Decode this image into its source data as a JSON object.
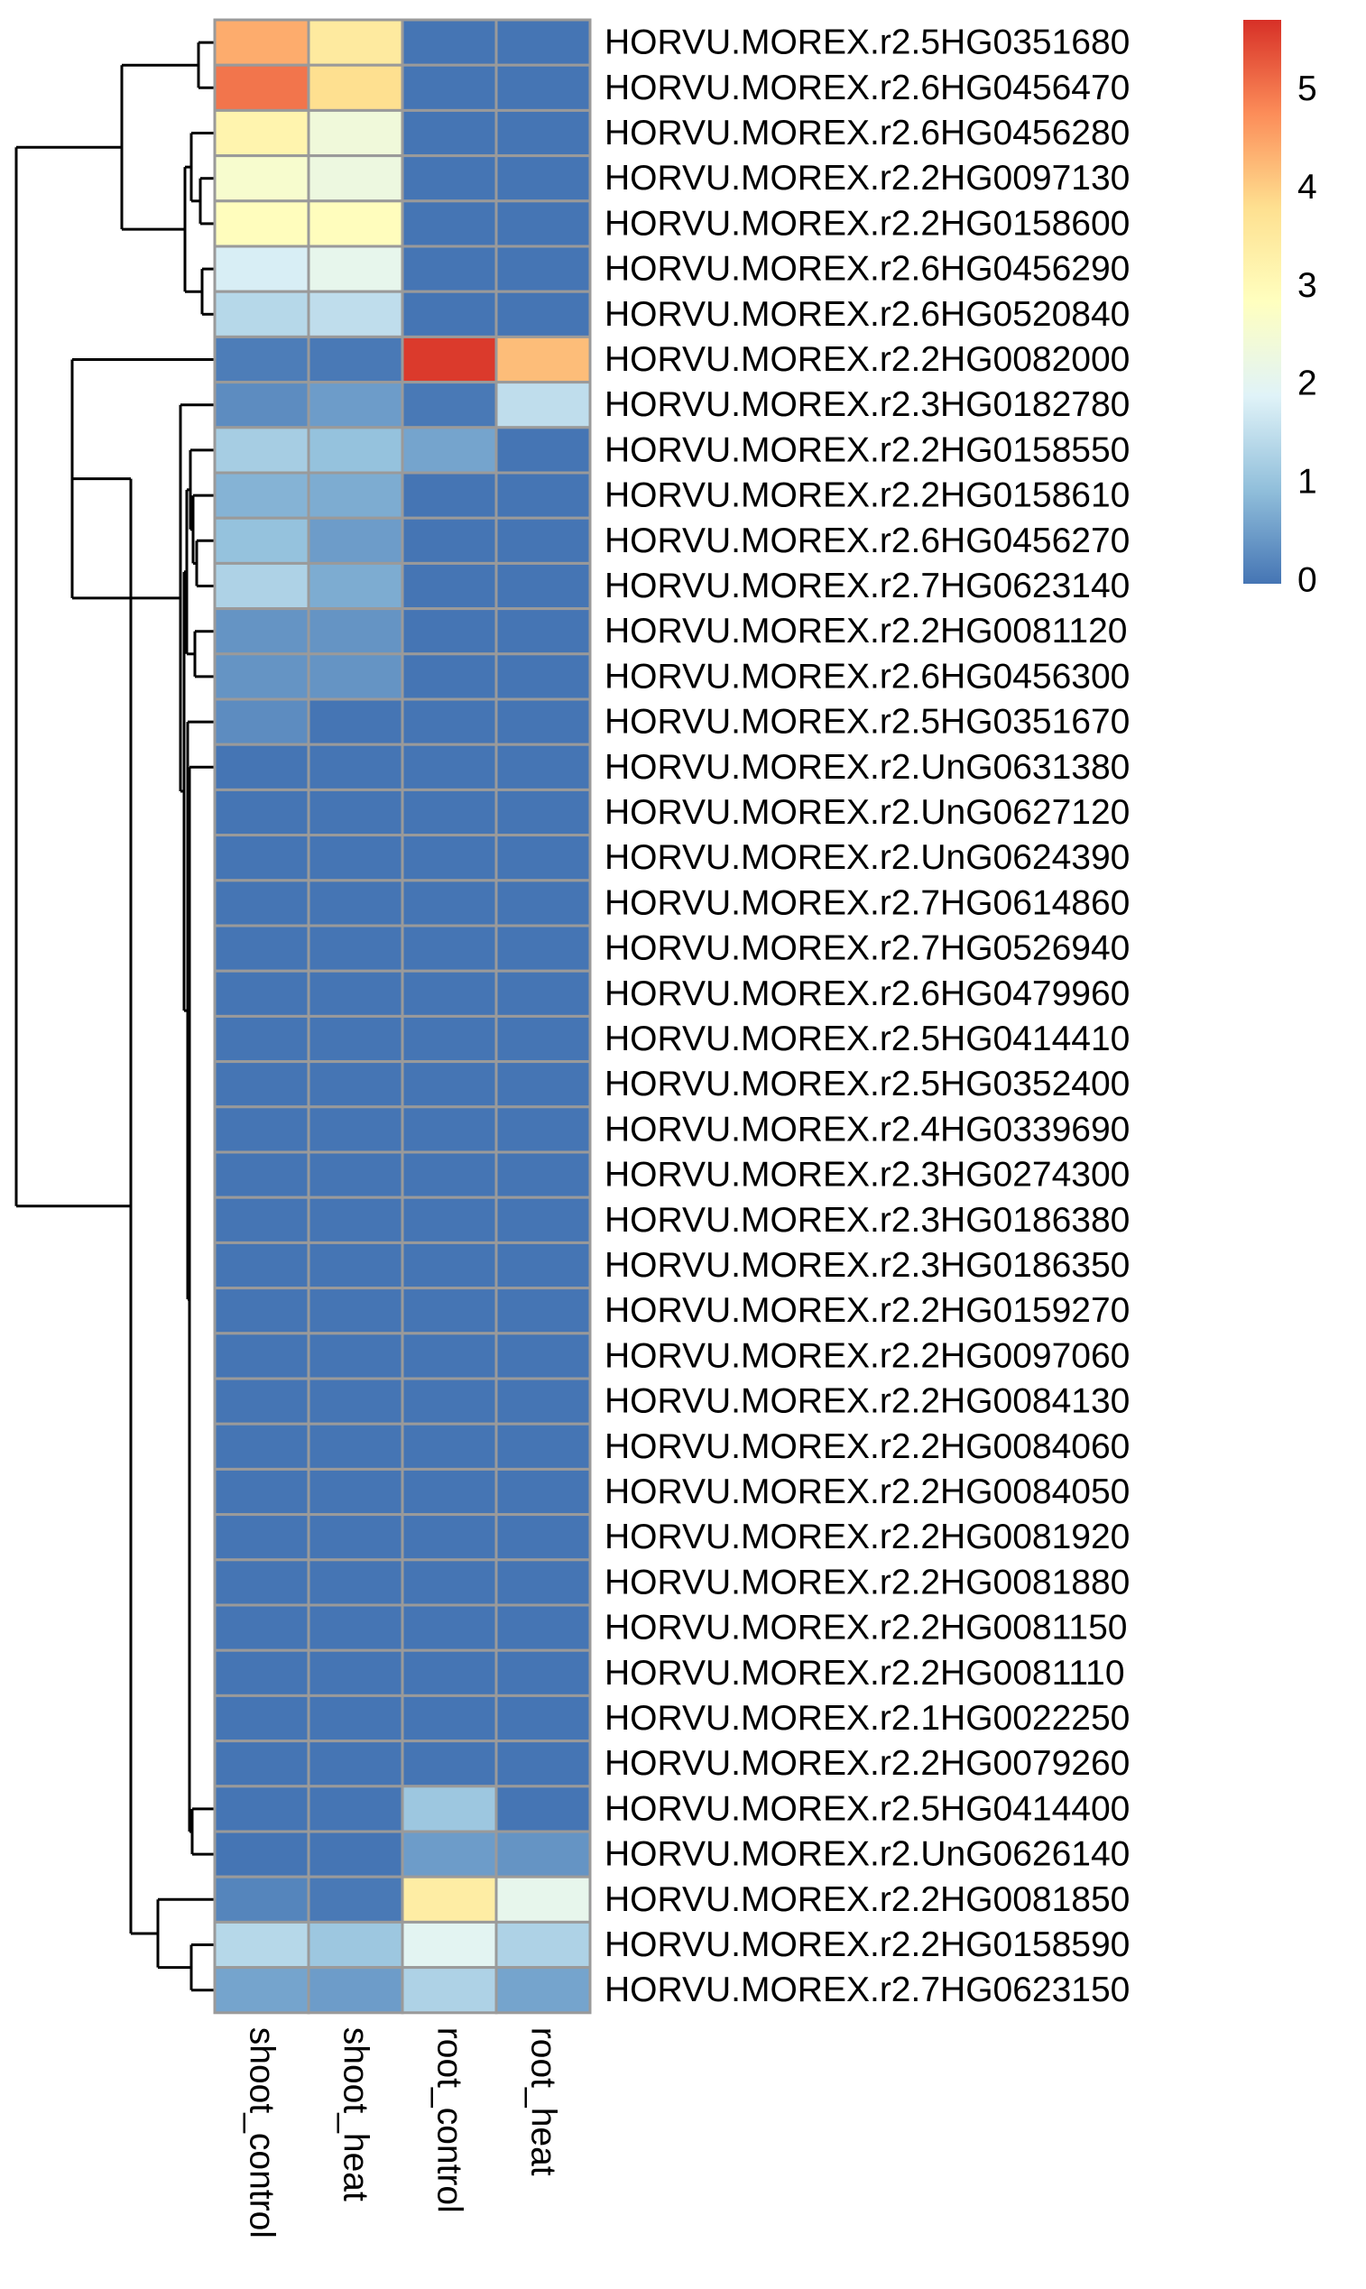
{
  "chart_data": {
    "type": "heatmap",
    "columns": [
      "shoot_control",
      "shoot_heat",
      "root_control",
      "root_heat"
    ],
    "rows": [
      {
        "gene": "HORVU.MOREX.r2.5HG0351680",
        "values": [
          4.4,
          3.5,
          0,
          0
        ]
      },
      {
        "gene": "HORVU.MOREX.r2.6HG0456470",
        "values": [
          5.0,
          3.8,
          0,
          0
        ]
      },
      {
        "gene": "HORVU.MOREX.r2.6HG0456280",
        "values": [
          3.2,
          2.4,
          0,
          0
        ]
      },
      {
        "gene": "HORVU.MOREX.r2.2HG0097130",
        "values": [
          2.6,
          2.3,
          0,
          0
        ]
      },
      {
        "gene": "HORVU.MOREX.r2.2HG0158600",
        "values": [
          2.9,
          2.9,
          0,
          0
        ]
      },
      {
        "gene": "HORVU.MOREX.r2.6HG0456290",
        "values": [
          1.8,
          2.1,
          0,
          0
        ]
      },
      {
        "gene": "HORVU.MOREX.r2.6HG0520840",
        "values": [
          1.4,
          1.5,
          0,
          0
        ]
      },
      {
        "gene": "HORVU.MOREX.r2.2HG0082000",
        "values": [
          0.1,
          0.05,
          5.6,
          4.2
        ]
      },
      {
        "gene": "HORVU.MOREX.r2.3HG0182780",
        "values": [
          0.3,
          0.5,
          0.05,
          1.5
        ]
      },
      {
        "gene": "HORVU.MOREX.r2.2HG0158550",
        "values": [
          1.2,
          1.0,
          0.6,
          0
        ]
      },
      {
        "gene": "HORVU.MOREX.r2.2HG0158610",
        "values": [
          0.8,
          0.7,
          0,
          0
        ]
      },
      {
        "gene": "HORVU.MOREX.r2.6HG0456270",
        "values": [
          1.0,
          0.5,
          0,
          0
        ]
      },
      {
        "gene": "HORVU.MOREX.r2.7HG0623140",
        "values": [
          1.3,
          0.7,
          0,
          0
        ]
      },
      {
        "gene": "HORVU.MOREX.r2.2HG0081120",
        "values": [
          0.4,
          0.4,
          0,
          0
        ]
      },
      {
        "gene": "HORVU.MOREX.r2.6HG0456300",
        "values": [
          0.4,
          0.4,
          0,
          0
        ]
      },
      {
        "gene": "HORVU.MOREX.r2.5HG0351670",
        "values": [
          0.3,
          0,
          0,
          0
        ]
      },
      {
        "gene": "HORVU.MOREX.r2.UnG0631380",
        "values": [
          0,
          0,
          0,
          0
        ]
      },
      {
        "gene": "HORVU.MOREX.r2.UnG0627120",
        "values": [
          0,
          0,
          0,
          0
        ]
      },
      {
        "gene": "HORVU.MOREX.r2.UnG0624390",
        "values": [
          0,
          0,
          0,
          0
        ]
      },
      {
        "gene": "HORVU.MOREX.r2.7HG0614860",
        "values": [
          0,
          0,
          0,
          0
        ]
      },
      {
        "gene": "HORVU.MOREX.r2.7HG0526940",
        "values": [
          0,
          0,
          0,
          0
        ]
      },
      {
        "gene": "HORVU.MOREX.r2.6HG0479960",
        "values": [
          0,
          0,
          0,
          0
        ]
      },
      {
        "gene": "HORVU.MOREX.r2.5HG0414410",
        "values": [
          0,
          0,
          0,
          0
        ]
      },
      {
        "gene": "HORVU.MOREX.r2.5HG0352400",
        "values": [
          0,
          0,
          0,
          0
        ]
      },
      {
        "gene": "HORVU.MOREX.r2.4HG0339690",
        "values": [
          0,
          0,
          0,
          0
        ]
      },
      {
        "gene": "HORVU.MOREX.r2.3HG0274300",
        "values": [
          0,
          0,
          0,
          0
        ]
      },
      {
        "gene": "HORVU.MOREX.r2.3HG0186380",
        "values": [
          0,
          0,
          0,
          0
        ]
      },
      {
        "gene": "HORVU.MOREX.r2.3HG0186350",
        "values": [
          0,
          0,
          0,
          0
        ]
      },
      {
        "gene": "HORVU.MOREX.r2.2HG0159270",
        "values": [
          0,
          0,
          0,
          0
        ]
      },
      {
        "gene": "HORVU.MOREX.r2.2HG0097060",
        "values": [
          0,
          0,
          0,
          0
        ]
      },
      {
        "gene": "HORVU.MOREX.r2.2HG0084130",
        "values": [
          0,
          0,
          0,
          0
        ]
      },
      {
        "gene": "HORVU.MOREX.r2.2HG0084060",
        "values": [
          0,
          0,
          0,
          0
        ]
      },
      {
        "gene": "HORVU.MOREX.r2.2HG0084050",
        "values": [
          0,
          0,
          0,
          0
        ]
      },
      {
        "gene": "HORVU.MOREX.r2.2HG0081920",
        "values": [
          0,
          0,
          0,
          0
        ]
      },
      {
        "gene": "HORVU.MOREX.r2.2HG0081880",
        "values": [
          0,
          0,
          0,
          0
        ]
      },
      {
        "gene": "HORVU.MOREX.r2.2HG0081150",
        "values": [
          0,
          0,
          0,
          0
        ]
      },
      {
        "gene": "HORVU.MOREX.r2.2HG0081110",
        "values": [
          0,
          0,
          0,
          0
        ]
      },
      {
        "gene": "HORVU.MOREX.r2.1HG0022250",
        "values": [
          0,
          0,
          0,
          0
        ]
      },
      {
        "gene": "HORVU.MOREX.r2.2HG0079260",
        "values": [
          0,
          0,
          0,
          0
        ]
      },
      {
        "gene": "HORVU.MOREX.r2.5HG0414400",
        "values": [
          0,
          0,
          1.1,
          0
        ]
      },
      {
        "gene": "HORVU.MOREX.r2.UnG0626140",
        "values": [
          0,
          0,
          0.5,
          0.4
        ]
      },
      {
        "gene": "HORVU.MOREX.r2.2HG0081850",
        "values": [
          0.2,
          0.05,
          3.4,
          2.1
        ]
      },
      {
        "gene": "HORVU.MOREX.r2.2HG0158590",
        "values": [
          1.4,
          1.1,
          2.0,
          1.3
        ]
      },
      {
        "gene": "HORVU.MOREX.r2.7HG0623150",
        "values": [
          0.6,
          0.5,
          1.3,
          0.6
        ]
      }
    ],
    "color_scale": {
      "min": 0,
      "max": 5.7,
      "stops": [
        {
          "value": 0,
          "color": "#4575B4"
        },
        {
          "value": 0.95,
          "color": "#91BFDB"
        },
        {
          "value": 1.9,
          "color": "#E0F3F8"
        },
        {
          "value": 2.85,
          "color": "#FFFFBF"
        },
        {
          "value": 3.8,
          "color": "#FEE090"
        },
        {
          "value": 4.75,
          "color": "#FC8D59"
        },
        {
          "value": 5.7,
          "color": "#D73027"
        }
      ]
    },
    "legend_ticks": [
      "0",
      "1",
      "2",
      "3",
      "4",
      "5"
    ],
    "legend_position": "top-right",
    "row_dendrogram": true
  }
}
